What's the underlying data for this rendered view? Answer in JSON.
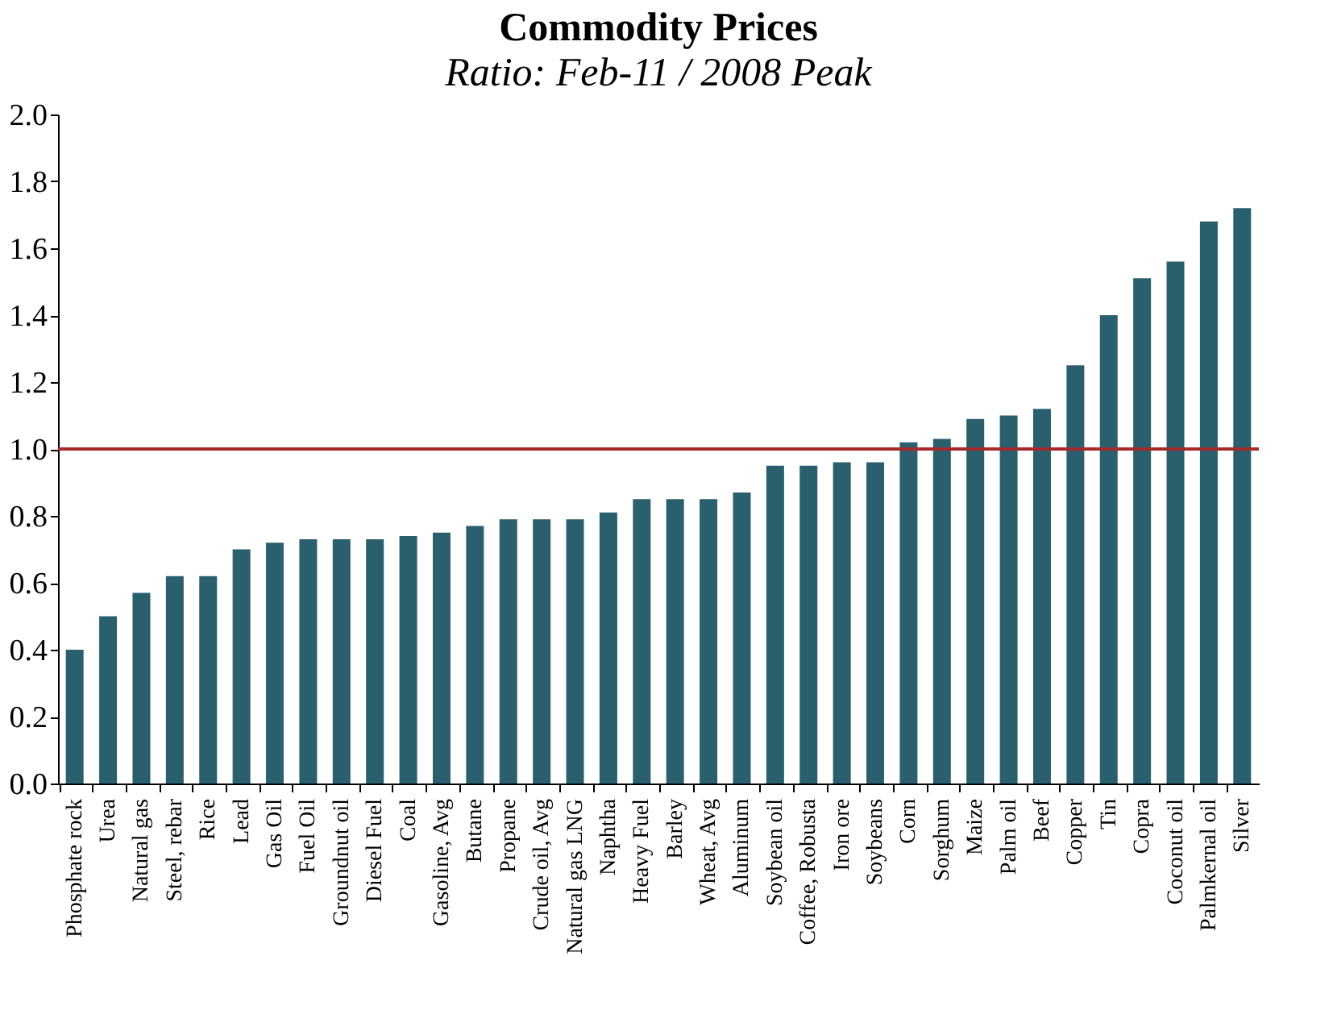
{
  "chart_data": {
    "type": "bar",
    "title": "Commodity Prices",
    "subtitle": "Ratio: Feb-11 / 2008 Peak",
    "categories": [
      "Phosphate rock",
      "Urea",
      "Natural gas",
      "Steel, rebar",
      "Rice",
      "Lead",
      "Gas Oil",
      "Fuel Oil",
      "Groundnut oil",
      "Diesel Fuel",
      "Coal",
      "Gasoline, Avg",
      "Butane",
      "Propane",
      "Crude oil, Avg",
      "Natural gas LNG",
      "Naphtha",
      "Heavy Fuel",
      "Barley",
      "Wheat, Avg",
      "Aluminum",
      "Soybean oil",
      "Coffee, Robusta",
      "Iron ore",
      "Soybeans",
      "Corn",
      "Sorghum",
      "Maize",
      "Palm oil",
      "Beef",
      "Copper",
      "Tin",
      "Copra",
      "Coconut oil",
      "Palmkernal oil",
      "Silver"
    ],
    "values": [
      0.4,
      0.5,
      0.57,
      0.62,
      0.62,
      0.7,
      0.72,
      0.73,
      0.73,
      0.73,
      0.74,
      0.75,
      0.77,
      0.79,
      0.79,
      0.79,
      0.81,
      0.85,
      0.85,
      0.85,
      0.87,
      0.95,
      0.95,
      0.96,
      0.96,
      1.02,
      1.03,
      1.09,
      1.1,
      1.12,
      1.25,
      1.4,
      1.51,
      1.56,
      1.68,
      1.72
    ],
    "color": "#2a5f6e",
    "ylim": [
      0,
      2.0
    ],
    "yticks": [
      {
        "value": 0,
        "label": "0.0"
      },
      {
        "value": 0.2,
        "label": "0.2"
      },
      {
        "value": 0.4,
        "label": "0.4"
      },
      {
        "value": 0.6,
        "label": "0.6"
      },
      {
        "value": 0.8,
        "label": "0.8"
      },
      {
        "value": 1.0,
        "label": "1.0"
      },
      {
        "value": 1.2,
        "label": "1.2"
      },
      {
        "value": 1.4,
        "label": "1.4"
      },
      {
        "value": 1.6,
        "label": "1.6"
      },
      {
        "value": 1.8,
        "label": "1.8"
      },
      {
        "value": 2.0,
        "label": "2.0"
      }
    ],
    "ref_lines": [
      {
        "axis": "y",
        "value": 1.0,
        "color": "#a52a2a"
      }
    ],
    "grid": false
  }
}
